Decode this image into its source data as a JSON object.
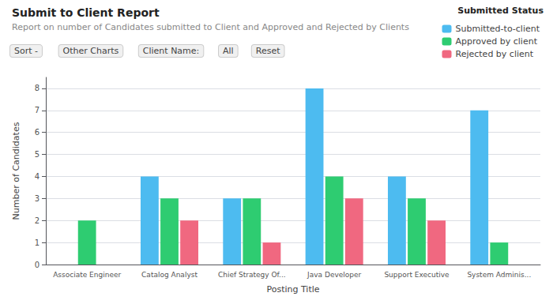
{
  "chart_data": {
    "type": "bar",
    "title": "Submit to Client Report",
    "subtitle": "Report on number of Candidates submitted to Client and Approved and Rejected by Clients",
    "annotations": [
      "Sort -",
      "Other Charts",
      "Client Name:",
      "All",
      "Reset"
    ],
    "legend_title": "Submitted Status",
    "categories": [
      "Associate Engineer",
      "Catalog Analyst",
      "Chief Strategy Of...",
      "Java Developer",
      "Support Executive",
      "System Adminis..."
    ],
    "series": [
      {
        "name": "Submitted-to-client",
        "color": "#4DBBF0",
        "values": [
          0,
          4,
          3,
          8,
          4,
          7
        ]
      },
      {
        "name": "Approved by client",
        "color": "#2ECC71",
        "values": [
          2,
          3,
          3,
          4,
          3,
          1
        ]
      },
      {
        "name": "Rejected by client",
        "color": "#F06880",
        "values": [
          0,
          2,
          1,
          3,
          2,
          0
        ]
      }
    ],
    "xlabel": "Posting Title",
    "ylabel": "Number of Candidates",
    "ylim": [
      0,
      8.5
    ],
    "yticks": [
      0,
      1,
      2,
      3,
      4,
      5,
      6,
      7,
      8
    ],
    "grid": true,
    "legend": "upper right"
  }
}
